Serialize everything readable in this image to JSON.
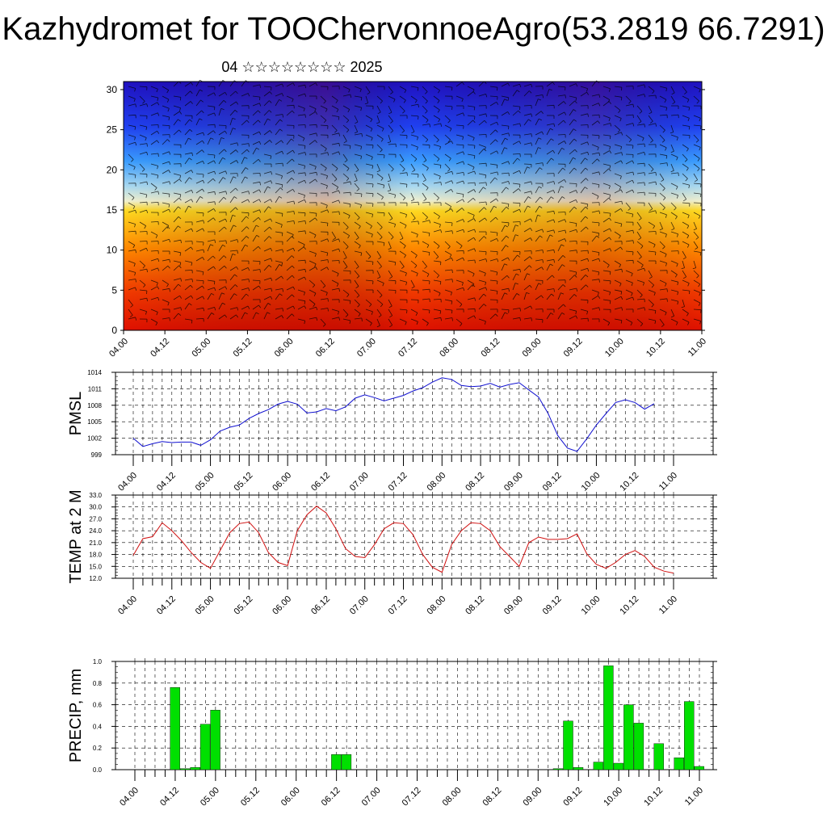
{
  "title": "Kazhydromet for TOOChervonnoeAgro(53.2819 66.7291)",
  "subtitle": "04 ☆☆☆☆☆☆☆☆ 2025",
  "colors": {
    "pmsl": "#1010d0",
    "temp": "#d01010",
    "precip": "#00e000"
  },
  "chart_data": [
    {
      "type": "heatmap",
      "title": "",
      "xlabel": "",
      "ylabel": "",
      "x_ticks": [
        "04.00",
        "04.12",
        "05.00",
        "05.12",
        "06.00",
        "06.12",
        "07.00",
        "07.12",
        "08.00",
        "08.12",
        "09.00",
        "09.12",
        "10.00",
        "10.12",
        "11.00"
      ],
      "y_ticks": [
        0,
        5,
        10,
        15,
        20,
        25,
        30
      ],
      "ylim": [
        0,
        31
      ],
      "colormap": "blue-to-red (cold aloft, warm near surface)",
      "overlay": "wind barbs"
    },
    {
      "type": "line",
      "ylabel": "PMSL",
      "ylim": [
        999,
        1014
      ],
      "y_ticks": [
        999,
        1002,
        1005,
        1008,
        1011,
        1014
      ],
      "x_ticks": [
        "04.00",
        "04.12",
        "05.00",
        "05.12",
        "06.00",
        "06.12",
        "07.00",
        "07.12",
        "08.00",
        "08.12",
        "09.00",
        "09.12",
        "10.00",
        "10.12",
        "11.00"
      ],
      "x_step_hours": 3,
      "series": [
        {
          "values": [
            1002.0,
            1000.5,
            1001.0,
            1001.4,
            1001.2,
            1001.3,
            1001.3,
            1000.7,
            1001.7,
            1003.3,
            1004.0,
            1004.4,
            1005.6,
            1006.5,
            1007.2,
            1008.2,
            1008.7,
            1008.2,
            1006.6,
            1006.8,
            1007.4,
            1007.0,
            1007.7,
            1009.3,
            1009.9,
            1009.4,
            1008.8,
            1009.3,
            1009.8,
            1010.6,
            1011.2,
            1012.2,
            1013.0,
            1012.7,
            1011.6,
            1011.4,
            1011.5,
            1012.0,
            1011.3,
            1011.8,
            1012.1,
            1010.8,
            1009.5,
            1006.5,
            1002.5,
            1000.2,
            999.6,
            1001.9,
            1004.4,
            1006.5,
            1008.5,
            1009.0,
            1008.5,
            1007.3,
            1008.3
          ]
        }
      ]
    },
    {
      "type": "line",
      "ylabel": "TEMP at 2 M",
      "ylim": [
        12.0,
        33.0
      ],
      "y_ticks": [
        12.0,
        15.0,
        18.0,
        21.0,
        24.0,
        27.0,
        30.0,
        33.0
      ],
      "x_ticks": [
        "04.00",
        "04.12",
        "05.00",
        "05.12",
        "06.00",
        "06.12",
        "07.00",
        "07.12",
        "08.00",
        "08.12",
        "09.00",
        "09.12",
        "10.00",
        "10.12",
        "11.00"
      ],
      "x_step_hours": 3,
      "series": [
        {
          "values": [
            17.8,
            22.0,
            22.5,
            26.0,
            24.0,
            21.5,
            18.5,
            16.0,
            14.5,
            19.0,
            23.5,
            25.8,
            26.2,
            23.5,
            18.5,
            16.0,
            15.2,
            24.0,
            28.0,
            30.2,
            28.5,
            24.5,
            19.5,
            17.5,
            17.2,
            20.5,
            24.5,
            26.0,
            25.8,
            23.0,
            18.0,
            14.8,
            13.5,
            20.5,
            24.0,
            26.0,
            25.8,
            24.0,
            20.0,
            17.5,
            15.0,
            21.0,
            22.4,
            21.8,
            21.8,
            22.0,
            23.2,
            18.2,
            15.5,
            14.5,
            16.0,
            18.0,
            19.0,
            17.5,
            14.8,
            13.8,
            13.3
          ]
        }
      ]
    },
    {
      "type": "bar",
      "ylabel": "PRECIP, mm",
      "ylim": [
        0.0,
        1.0
      ],
      "y_ticks": [
        0.0,
        0.2,
        0.4,
        0.6,
        0.8,
        1.0
      ],
      "x_ticks": [
        "04.00",
        "04.12",
        "05.00",
        "05.12",
        "06.00",
        "06.12",
        "07.00",
        "07.12",
        "08.00",
        "08.12",
        "09.00",
        "09.12",
        "10.00",
        "10.12",
        "11.00"
      ],
      "x_step_hours": 3,
      "values": [
        0,
        0,
        0,
        0,
        0.76,
        0.01,
        0.02,
        0.42,
        0.55,
        0,
        0,
        0,
        0,
        0,
        0,
        0,
        0,
        0,
        0,
        0,
        0.14,
        0.14,
        0,
        0,
        0,
        0,
        0,
        0,
        0,
        0,
        0,
        0,
        0,
        0,
        0,
        0,
        0,
        0,
        0,
        0,
        0,
        0,
        0.01,
        0.45,
        0.02,
        0,
        0.07,
        0.96,
        0.06,
        0.6,
        0.43,
        0,
        0.24,
        0,
        0.11,
        0.63,
        0.03
      ]
    }
  ]
}
